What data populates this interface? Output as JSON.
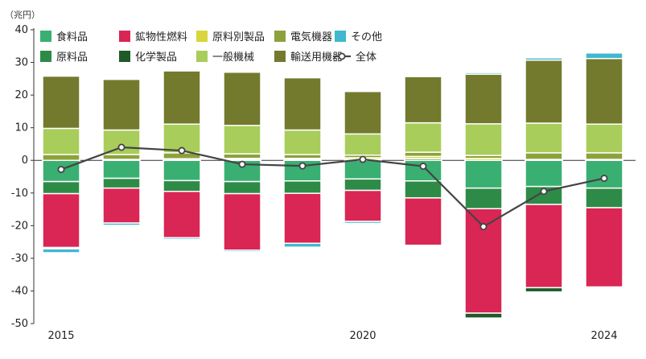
{
  "chart_data": {
    "type": "bar",
    "stacked": true,
    "unit_label": "（兆円）",
    "ylim": [
      -50,
      40
    ],
    "yticks": [
      40,
      30,
      20,
      10,
      0,
      -10,
      -20,
      -30,
      -40,
      -50
    ],
    "years": [
      2015,
      2016,
      2017,
      2018,
      2019,
      2020,
      2021,
      2022,
      2023,
      2024
    ],
    "x_tick_labels": [
      {
        "year": 2015,
        "label": "2015"
      },
      {
        "year": 2020,
        "label": "2020"
      },
      {
        "year": 2024,
        "label": "2024"
      }
    ],
    "series": [
      {
        "key": "food",
        "name": "食料品",
        "color": "#3aaf72",
        "values": [
          -6.5,
          -5.5,
          -6.2,
          -6.5,
          -6.3,
          -5.7,
          -6.3,
          -8.5,
          -8.0,
          -8.5
        ]
      },
      {
        "key": "raw",
        "name": "原料品",
        "color": "#2e8b47",
        "values": [
          -3.7,
          -3.0,
          -3.3,
          -3.7,
          -3.8,
          -3.5,
          -5.2,
          -6.3,
          -5.5,
          -6.0
        ]
      },
      {
        "key": "fuel",
        "name": "鉱物性燃料",
        "color": "#d92654",
        "values": [
          -16.5,
          -10.7,
          -14.2,
          -17.3,
          -15.3,
          -9.5,
          -14.5,
          -32.0,
          -25.5,
          -24.3
        ]
      },
      {
        "key": "chem",
        "name": "化学製品",
        "color": "#1f5a28",
        "values": [
          -0.3,
          0.3,
          0.3,
          0.3,
          0.3,
          0.3,
          0.5,
          -1.5,
          -1.3,
          -0.2
        ]
      },
      {
        "key": "mfg",
        "name": "原料別製品",
        "color": "#d8d63a",
        "values": [
          -0.1,
          0.0,
          0.2,
          0.3,
          0.3,
          0.5,
          0.7,
          0.6,
          0.3,
          0.3
        ]
      },
      {
        "key": "elec",
        "name": "電気機器",
        "color": "#8da23a",
        "values": [
          1.8,
          1.5,
          1.8,
          1.4,
          1.2,
          0.8,
          1.3,
          0.9,
          2.0,
          2.0
        ]
      },
      {
        "key": "mach",
        "name": "一般機械",
        "color": "#a8cd5a",
        "values": [
          8.0,
          7.5,
          8.8,
          8.7,
          7.5,
          6.5,
          9.0,
          9.7,
          9.1,
          8.8
        ]
      },
      {
        "key": "trans",
        "name": "輸送用機器",
        "color": "#737a2e",
        "values": [
          16.0,
          15.5,
          16.3,
          16.3,
          16.0,
          13.0,
          14.2,
          15.2,
          19.3,
          20.1
        ]
      },
      {
        "key": "other",
        "name": "その他",
        "color": "#3fb8d0",
        "values": [
          -1.2,
          -0.7,
          -0.5,
          -0.5,
          -1.2,
          -0.6,
          0.2,
          0.5,
          0.7,
          1.7
        ]
      }
    ],
    "total": {
      "name": "全体",
      "color": "#444444",
      "values": [
        -2.8,
        4.0,
        3.0,
        -1.2,
        -1.7,
        0.3,
        -1.8,
        -20.3,
        -9.5,
        -5.5
      ]
    },
    "legend": [
      {
        "series": "food",
        "label": "食料品",
        "kind": "box"
      },
      {
        "series": "fuel",
        "label": "鉱物性燃料",
        "kind": "box"
      },
      {
        "series": "mfg",
        "label": "原料別製品",
        "kind": "box"
      },
      {
        "series": "elec",
        "label": "電気機器",
        "kind": "box"
      },
      {
        "series": "other",
        "label": "その他",
        "kind": "box"
      },
      {
        "series": "raw",
        "label": "原料品",
        "kind": "box"
      },
      {
        "series": "chem",
        "label": "化学製品",
        "kind": "box"
      },
      {
        "series": "mach",
        "label": "一般機械",
        "kind": "box"
      },
      {
        "series": "trans",
        "label": "輸送用機器",
        "kind": "box"
      },
      {
        "series": "total",
        "label": "全体",
        "kind": "line"
      }
    ]
  }
}
